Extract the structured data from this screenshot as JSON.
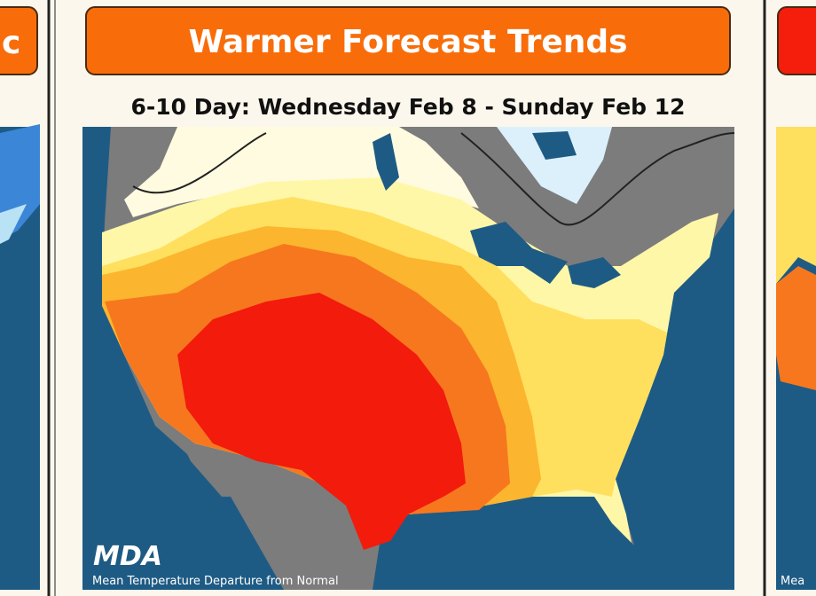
{
  "left_card": {
    "title": "c"
  },
  "center_card": {
    "title": "Warmer Forecast Trends",
    "subtitle": "6-10 Day: Wednesday Feb 8 - Sunday Feb 12",
    "map": {
      "logo": "MDA",
      "caption": "Mean Temperature Departure from Normal"
    }
  },
  "right_card": {
    "map": {
      "caption": "Mea"
    }
  }
}
